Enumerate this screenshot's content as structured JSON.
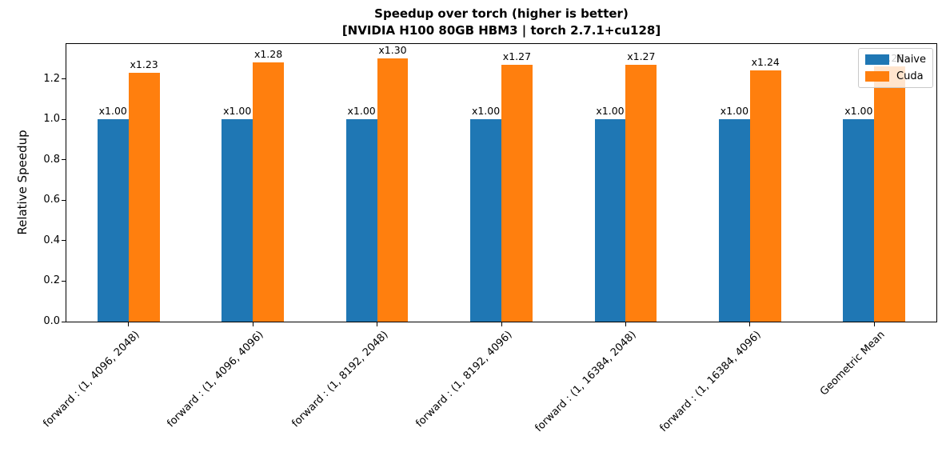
{
  "chart_data": {
    "type": "bar",
    "title_line1": "Speedup over torch (higher is better)",
    "title_line2": "[NVIDIA H100 80GB HBM3 | torch 2.7.1+cu128]",
    "ylabel": "Relative Speedup",
    "categories": [
      "forward : (1, 4096, 2048)",
      "forward : (1, 4096, 4096)",
      "forward : (1, 8192, 2048)",
      "forward : (1, 8192, 4096)",
      "forward : (1, 16384, 2048)",
      "forward : (1, 16384, 4096)",
      "Geometric Mean"
    ],
    "series": [
      {
        "name": "Naive",
        "color": "#1f77b4",
        "values": [
          1.0,
          1.0,
          1.0,
          1.0,
          1.0,
          1.0,
          1.0
        ],
        "bar_labels": [
          "x1.00",
          "x1.00",
          "x1.00",
          "x1.00",
          "x1.00",
          "x1.00",
          "x1.00"
        ]
      },
      {
        "name": "Cuda",
        "color": "#ff7f0e",
        "values": [
          1.23,
          1.28,
          1.3,
          1.27,
          1.27,
          1.24,
          1.26
        ],
        "bar_labels": [
          "x1.23",
          "x1.28",
          "x1.30",
          "x1.27",
          "x1.27",
          "x1.24",
          "x1.26"
        ]
      }
    ],
    "ylim": [
      0,
      1.372
    ],
    "ytick_values": [
      0.0,
      0.2,
      0.4,
      0.6,
      0.8,
      1.0,
      1.2
    ],
    "ytick_labels": [
      "0.0",
      "0.2",
      "0.4",
      "0.6",
      "0.8",
      "1.0",
      "1.2"
    ],
    "legend": {
      "position": "upper right",
      "entries": [
        "Naive",
        "Cuda"
      ]
    },
    "grid": false
  }
}
